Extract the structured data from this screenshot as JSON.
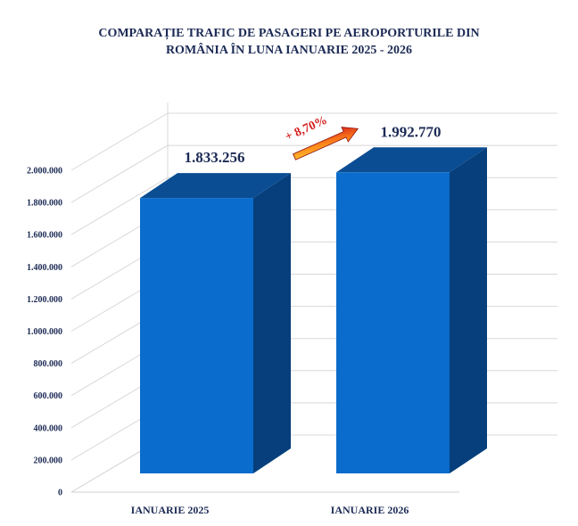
{
  "chart_data": {
    "type": "bar",
    "title_line1": "COMPARAȚIE TRAFIC DE PASAGERI PE AEROPORTURILE DIN",
    "title_line2": "ROMÂNIA ÎN LUNA IANUARIE 2025 - 2026",
    "categories": [
      "IANUARIE 2025",
      "IANUARIE 2026"
    ],
    "values": [
      1833256,
      1992770
    ],
    "data_labels": [
      "1.833.256",
      "1.992.770"
    ],
    "ylim": [
      0,
      2000000
    ],
    "y_ticks": [
      0,
      200000,
      400000,
      600000,
      800000,
      1000000,
      1200000,
      1400000,
      1600000,
      1800000,
      2000000
    ],
    "y_tick_labels": [
      "0",
      "200.000",
      "400.000",
      "600.000",
      "800.000",
      "1.000.000",
      "1.200.000",
      "1.400.000",
      "1.600.000",
      "1.800.000",
      "2.000.000"
    ],
    "grid": true,
    "style": "3d-column",
    "colors": {
      "bar_front": "#0a6ccc",
      "bar_side": "#063f7c",
      "bar_top": "#0b4d92",
      "text": "#1c2a55",
      "growth": "#d42020"
    },
    "annotation": {
      "text": "+ 8,70%",
      "icon": "arrow-up-right-icon"
    }
  }
}
